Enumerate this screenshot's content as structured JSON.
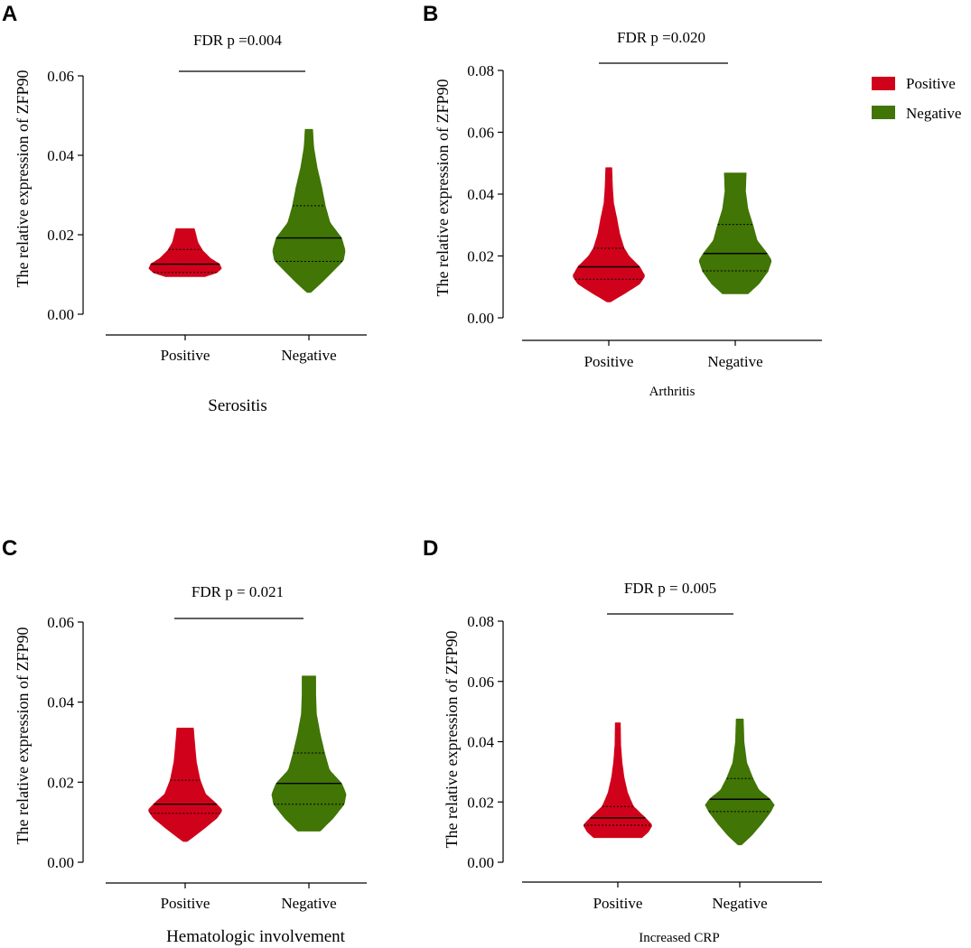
{
  "colors": {
    "positive": "#d0021b",
    "negative": "#417505",
    "axis": "#000000"
  },
  "legend": {
    "placement": "top-right",
    "items": [
      {
        "label": "Positive",
        "color": "#d0021b"
      },
      {
        "label": "Negative",
        "color": "#417505"
      }
    ]
  },
  "chart_data": [
    {
      "panel": "A",
      "type": "violin",
      "ylabel": "The relative expression of ZFP90",
      "xlabel": "Serositis",
      "significance": "FDR p =0.004",
      "ylim": [
        0,
        0.06
      ],
      "yticks": [
        "0.00",
        "0.02",
        "0.04",
        "0.06"
      ],
      "categories": [
        "Positive",
        "Negative"
      ],
      "series": [
        {
          "name": "Positive",
          "min": 0.0095,
          "max": 0.0215,
          "q1": 0.0105,
          "median": 0.0126,
          "q3": 0.0163,
          "profile": [
            [
              0.0095,
              0.55
            ],
            [
              0.0105,
              0.88
            ],
            [
              0.0115,
              1.0
            ],
            [
              0.0126,
              0.95
            ],
            [
              0.014,
              0.7
            ],
            [
              0.016,
              0.48
            ],
            [
              0.018,
              0.35
            ],
            [
              0.0205,
              0.28
            ],
            [
              0.0215,
              0.25
            ]
          ]
        },
        {
          "name": "Negative",
          "min": 0.0055,
          "max": 0.0465,
          "q1": 0.0133,
          "median": 0.0192,
          "q3": 0.0273,
          "profile": [
            [
              0.0055,
              0.05
            ],
            [
              0.008,
              0.35
            ],
            [
              0.011,
              0.68
            ],
            [
              0.0135,
              0.95
            ],
            [
              0.016,
              1.0
            ],
            [
              0.0192,
              0.9
            ],
            [
              0.023,
              0.58
            ],
            [
              0.0273,
              0.45
            ],
            [
              0.032,
              0.35
            ],
            [
              0.037,
              0.22
            ],
            [
              0.042,
              0.13
            ],
            [
              0.0465,
              0.1
            ]
          ]
        }
      ]
    },
    {
      "panel": "B",
      "type": "violin",
      "ylabel": "The relative expression of ZFP90",
      "xlabel": "Arthritis",
      "significance": "FDR p =0.020",
      "ylim": [
        0,
        0.08
      ],
      "yticks": [
        "0.00",
        "0.02",
        "0.04",
        "0.06",
        "0.08"
      ],
      "categories": [
        "Positive",
        "Negative"
      ],
      "series": [
        {
          "name": "Positive",
          "min": 0.0052,
          "max": 0.0485,
          "q1": 0.0125,
          "median": 0.0165,
          "q3": 0.0225,
          "profile": [
            [
              0.0052,
              0.05
            ],
            [
              0.008,
              0.45
            ],
            [
              0.011,
              0.85
            ],
            [
              0.0135,
              1.0
            ],
            [
              0.0165,
              0.85
            ],
            [
              0.02,
              0.55
            ],
            [
              0.0225,
              0.42
            ],
            [
              0.027,
              0.3
            ],
            [
              0.032,
              0.22
            ],
            [
              0.037,
              0.13
            ],
            [
              0.042,
              0.1
            ],
            [
              0.0485,
              0.08
            ]
          ]
        },
        {
          "name": "Negative",
          "min": 0.0078,
          "max": 0.0468,
          "q1": 0.0152,
          "median": 0.0208,
          "q3": 0.0302,
          "profile": [
            [
              0.0078,
              0.35
            ],
            [
              0.011,
              0.65
            ],
            [
              0.015,
              0.9
            ],
            [
              0.0185,
              1.0
            ],
            [
              0.0208,
              0.88
            ],
            [
              0.025,
              0.6
            ],
            [
              0.0302,
              0.48
            ],
            [
              0.035,
              0.35
            ],
            [
              0.041,
              0.28
            ],
            [
              0.0468,
              0.3
            ]
          ]
        }
      ]
    },
    {
      "panel": "C",
      "type": "violin",
      "ylabel": "The relative expression of ZFP90",
      "xlabel": "Hematologic involvement",
      "significance": "FDR p = 0.021",
      "ylim": [
        0,
        0.06
      ],
      "yticks": [
        "0.00",
        "0.02",
        "0.04",
        "0.06"
      ],
      "categories": [
        "Positive",
        "Negative"
      ],
      "series": [
        {
          "name": "Positive",
          "min": 0.0052,
          "max": 0.0335,
          "q1": 0.0122,
          "median": 0.0145,
          "q3": 0.0205,
          "profile": [
            [
              0.0052,
              0.05
            ],
            [
              0.008,
              0.45
            ],
            [
              0.011,
              0.85
            ],
            [
              0.013,
              1.0
            ],
            [
              0.0145,
              0.85
            ],
            [
              0.017,
              0.55
            ],
            [
              0.0205,
              0.4
            ],
            [
              0.025,
              0.3
            ],
            [
              0.03,
              0.25
            ],
            [
              0.0335,
              0.22
            ]
          ]
        },
        {
          "name": "Negative",
          "min": 0.0078,
          "max": 0.0465,
          "q1": 0.0145,
          "median": 0.0197,
          "q3": 0.0273,
          "profile": [
            [
              0.0078,
              0.3
            ],
            [
              0.011,
              0.65
            ],
            [
              0.0145,
              0.95
            ],
            [
              0.017,
              1.0
            ],
            [
              0.0197,
              0.88
            ],
            [
              0.023,
              0.55
            ],
            [
              0.0273,
              0.42
            ],
            [
              0.032,
              0.3
            ],
            [
              0.037,
              0.2
            ],
            [
              0.042,
              0.18
            ],
            [
              0.0465,
              0.18
            ]
          ]
        }
      ]
    },
    {
      "panel": "D",
      "type": "violin",
      "ylabel": "The relative expression of ZFP90",
      "xlabel": "Increased CRP",
      "significance": "FDR p = 0.005",
      "ylim": [
        0,
        0.08
      ],
      "yticks": [
        "0.00",
        "0.02",
        "0.04",
        "0.06",
        "0.08"
      ],
      "categories": [
        "Positive",
        "Negative"
      ],
      "series": [
        {
          "name": "Positive",
          "min": 0.0082,
          "max": 0.0462,
          "q1": 0.0123,
          "median": 0.0147,
          "q3": 0.0185,
          "profile": [
            [
              0.0082,
              0.7
            ],
            [
              0.01,
              0.88
            ],
            [
              0.0123,
              1.0
            ],
            [
              0.0147,
              0.8
            ],
            [
              0.0185,
              0.45
            ],
            [
              0.023,
              0.28
            ],
            [
              0.028,
              0.18
            ],
            [
              0.033,
              0.12
            ],
            [
              0.039,
              0.08
            ],
            [
              0.0462,
              0.07
            ]
          ]
        },
        {
          "name": "Negative",
          "min": 0.0058,
          "max": 0.0475,
          "q1": 0.0168,
          "median": 0.0209,
          "q3": 0.0278,
          "profile": [
            [
              0.0058,
              0.05
            ],
            [
              0.009,
              0.35
            ],
            [
              0.013,
              0.65
            ],
            [
              0.0168,
              0.9
            ],
            [
              0.019,
              1.0
            ],
            [
              0.0209,
              0.88
            ],
            [
              0.024,
              0.55
            ],
            [
              0.0278,
              0.38
            ],
            [
              0.033,
              0.2
            ],
            [
              0.04,
              0.12
            ],
            [
              0.0475,
              0.1
            ]
          ]
        }
      ]
    }
  ]
}
